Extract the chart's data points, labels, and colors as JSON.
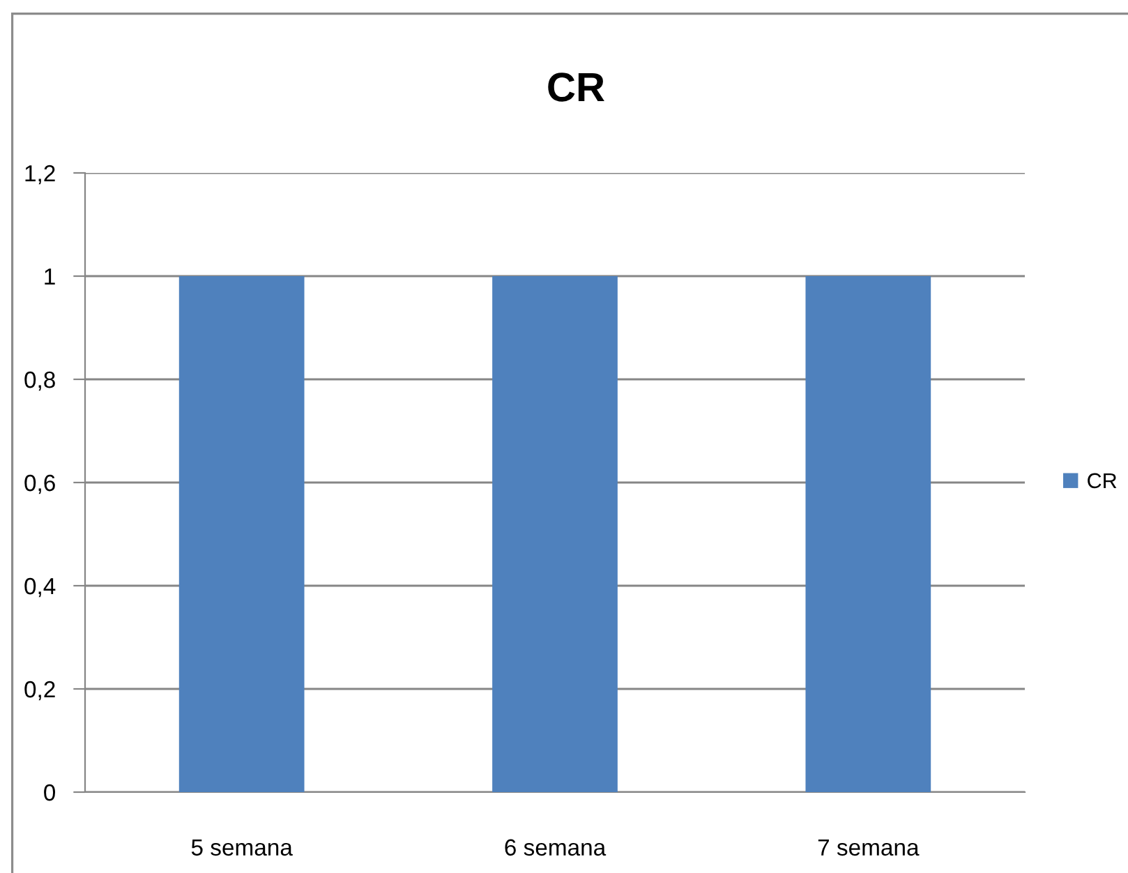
{
  "chart_data": {
    "type": "bar",
    "title": "CR",
    "categories": [
      "5 semana",
      "6 semana",
      "7 semana"
    ],
    "series": [
      {
        "name": "CR",
        "color": "#4f81bd",
        "values": [
          1,
          1,
          1
        ]
      }
    ],
    "ylim": [
      0,
      1.2
    ],
    "yticks": [
      0,
      {
        "value": 0.2,
        "label": "0,2"
      },
      {
        "value": 0.4,
        "label": "0,4"
      },
      {
        "value": 0.6,
        "label": "0,6"
      },
      {
        "value": 0.8,
        "label": "0,8"
      },
      1,
      {
        "value": 1.2,
        "label": "1,2"
      }
    ],
    "grid": "y",
    "legend": "right"
  }
}
